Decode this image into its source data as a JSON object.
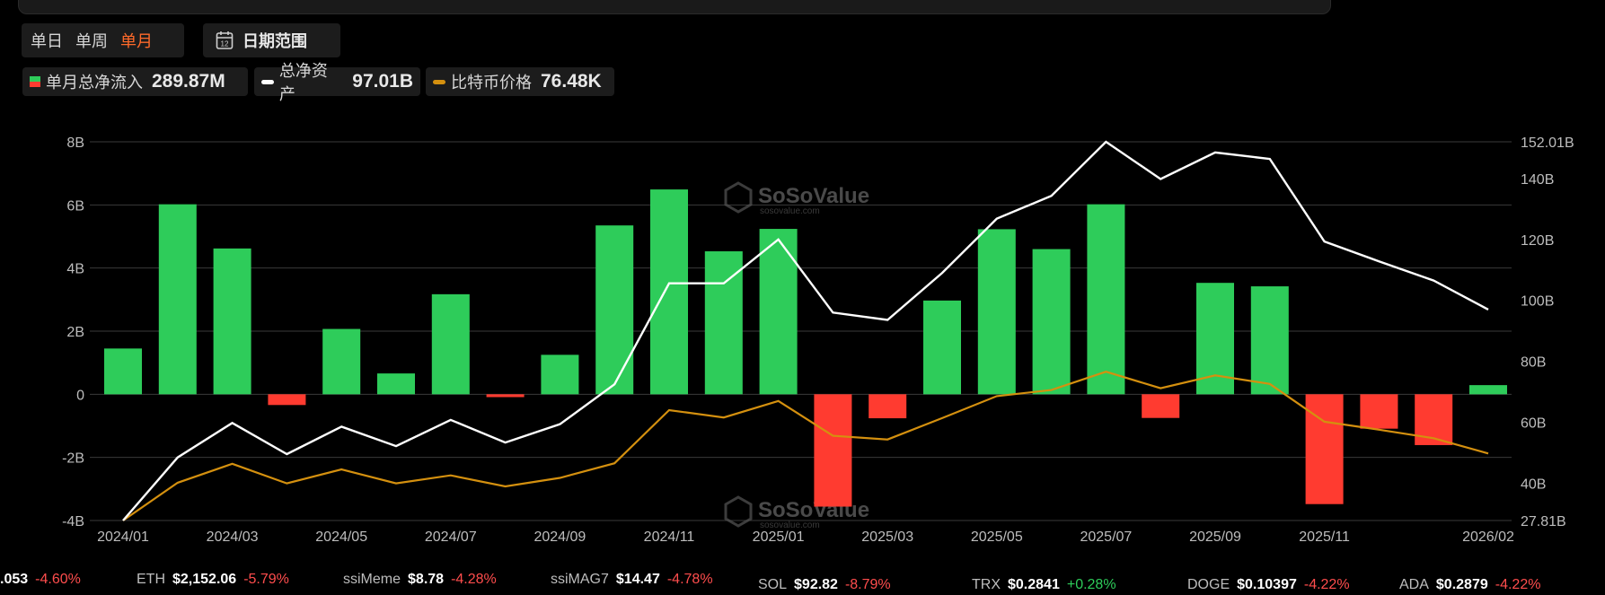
{
  "periods": {
    "day": "单日",
    "week": "单周",
    "month": "单月",
    "active": "month"
  },
  "date_range": {
    "label": "日期范围",
    "icon_text": "12"
  },
  "legend": [
    {
      "name": "单月总净流入",
      "value": "289.87M"
    },
    {
      "name": "总净资产",
      "value": "97.01B"
    },
    {
      "name": "比特币价格",
      "value": "76.48K"
    }
  ],
  "watermark": {
    "brand": "SoSoValue",
    "site": "sosovalue.com"
  },
  "colors": {
    "inflow": "#2ecc5a",
    "outflow": "#ff3b30",
    "assets": "#ffffff",
    "price": "#d4900f",
    "active": "#ff6a2a"
  },
  "chart_data": {
    "type": "bar",
    "x_tick_labels": [
      "2024/01",
      "2024/03",
      "2024/05",
      "2024/07",
      "2024/09",
      "2024/11",
      "2025/01",
      "2025/03",
      "2025/05",
      "2025/07",
      "2025/09",
      "2025/11",
      "2026/02"
    ],
    "y_left_ticks": [
      "8B",
      "6B",
      "4B",
      "2B",
      "0",
      "-2B",
      "-4B"
    ],
    "y_right_ticks": [
      "152.01B",
      "140B",
      "120B",
      "100B",
      "80B",
      "60B",
      "40B",
      "27.81B"
    ],
    "ylim_left": [
      -4,
      8
    ],
    "ylim_right": [
      27.81,
      152.01
    ],
    "grid": true,
    "months": [
      "2024/01",
      "2024/02",
      "2024/03",
      "2024/04",
      "2024/05",
      "2024/06",
      "2024/07",
      "2024/08",
      "2024/09",
      "2024/10",
      "2024/11",
      "2024/12",
      "2025/01",
      "2025/02",
      "2025/03",
      "2025/04",
      "2025/05",
      "2025/06",
      "2025/07",
      "2025/08",
      "2025/09",
      "2025/10",
      "2025/11",
      "2025/12",
      "2026/01",
      "2026/02"
    ],
    "series": [
      {
        "name": "单月总净流入",
        "axis": "left",
        "kind": "bar",
        "unit": "B",
        "values": [
          1.45,
          6.02,
          4.62,
          -0.34,
          2.07,
          0.66,
          3.17,
          -0.09,
          1.25,
          5.35,
          6.49,
          4.53,
          5.24,
          -3.56,
          -0.76,
          2.97,
          5.23,
          4.6,
          6.02,
          -0.75,
          3.53,
          3.42,
          -3.48,
          -1.09,
          -1.61,
          0.29
        ]
      },
      {
        "name": "总净资产",
        "axis": "right",
        "kind": "line",
        "unit": "B",
        "values": [
          27.8,
          48.5,
          59.8,
          49.6,
          58.6,
          52.2,
          60.8,
          53.4,
          59.4,
          72.5,
          105.6,
          105.6,
          120.0,
          96.0,
          93.6,
          109.0,
          126.8,
          134.3,
          152.0,
          139.8,
          148.5,
          146.4,
          119.3,
          112.8,
          106.5,
          97.01
        ]
      },
      {
        "name": "比特币价格",
        "axis": "right",
        "kind": "line",
        "values": [
          27.8,
          40.2,
          46.4,
          40.0,
          44.6,
          40.0,
          42.6,
          39.0,
          41.8,
          46.6,
          64.0,
          61.6,
          67.0,
          55.6,
          54.4,
          61.4,
          68.6,
          70.6,
          76.6,
          71.2,
          75.4,
          72.6,
          60.2,
          57.6,
          54.8,
          49.8
        ]
      }
    ]
  },
  "ticker_row1": [
    {
      "sym": "",
      "price": ".053",
      "change": "-4.60%"
    },
    {
      "sym": "ETH",
      "price": "$2,152.06",
      "change": "-5.79%"
    },
    {
      "sym": "ssiMeme",
      "price": "$8.78",
      "change": "-4.28%"
    },
    {
      "sym": "ssiMAG7",
      "price": "$14.47",
      "change": "-4.78%"
    }
  ],
  "ticker_row2": [
    {
      "sym": "SOL",
      "price": "$92.82",
      "change": "-8.79%"
    },
    {
      "sym": "TRX",
      "price": "$0.2841",
      "change": "+0.28%"
    },
    {
      "sym": "DOGE",
      "price": "$0.10397",
      "change": "-4.22%"
    },
    {
      "sym": "ADA",
      "price": "$0.2879",
      "change": "-4.22%"
    }
  ]
}
